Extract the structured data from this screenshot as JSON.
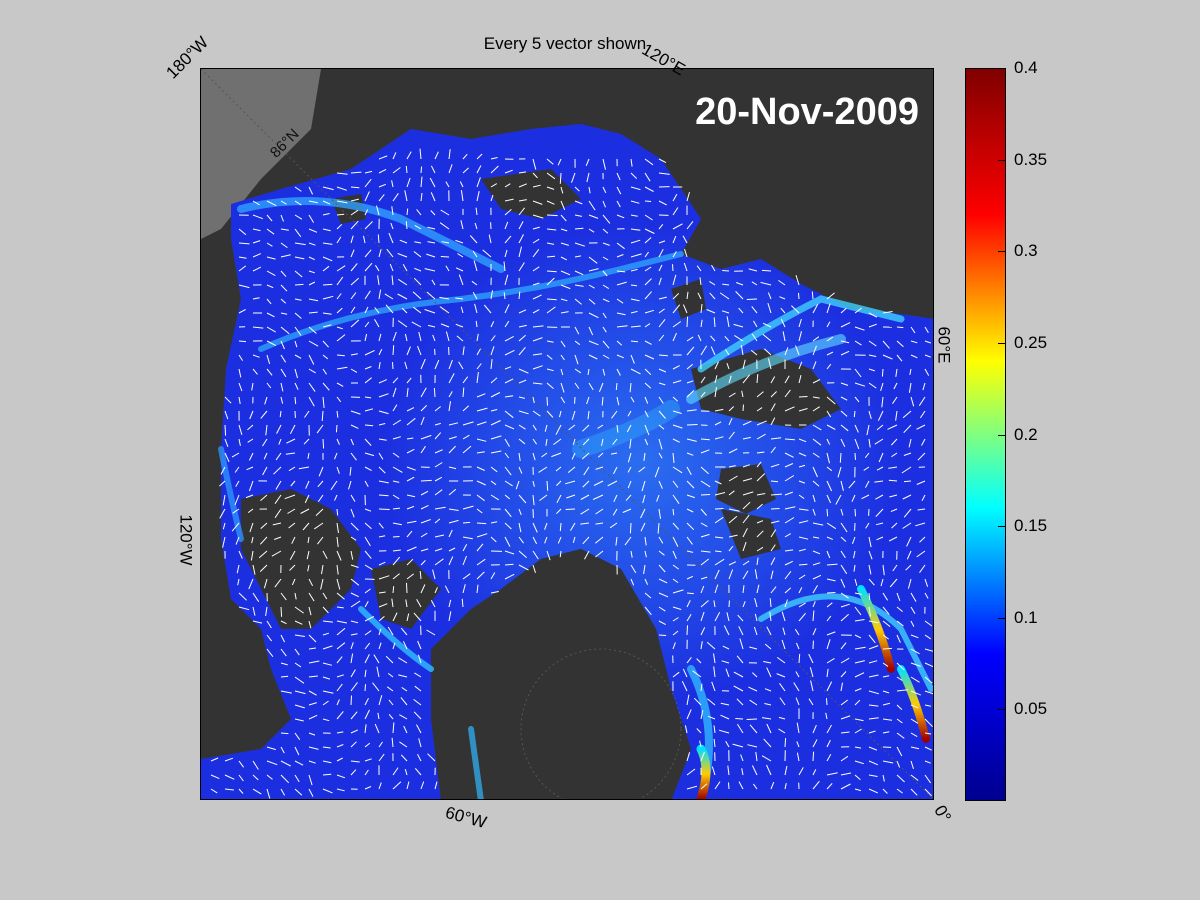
{
  "title": "Every 5 vector shown",
  "date": "20-Nov-2009",
  "lon_labels": {
    "top_left": "180°W",
    "top_right": "120°E",
    "right": "60°E",
    "left": "120°W",
    "bottom": "60°W",
    "bottom_right": "0°"
  },
  "lat_label": "86°N",
  "colorbar": {
    "min": 0,
    "max": 0.4,
    "ticks": [
      "0.4",
      "0.35",
      "0.3",
      "0.25",
      "0.2",
      "0.15",
      "0.1",
      "0.05"
    ],
    "colormap": [
      "#00008f",
      "#0000ff",
      "#00ffff",
      "#ffff00",
      "#ff0000",
      "#800000"
    ]
  },
  "colors": {
    "land": "#3a3a3a",
    "ice_field": "#1f33e6",
    "vector": "#ffffff",
    "background": "#c8c8c8"
  }
}
